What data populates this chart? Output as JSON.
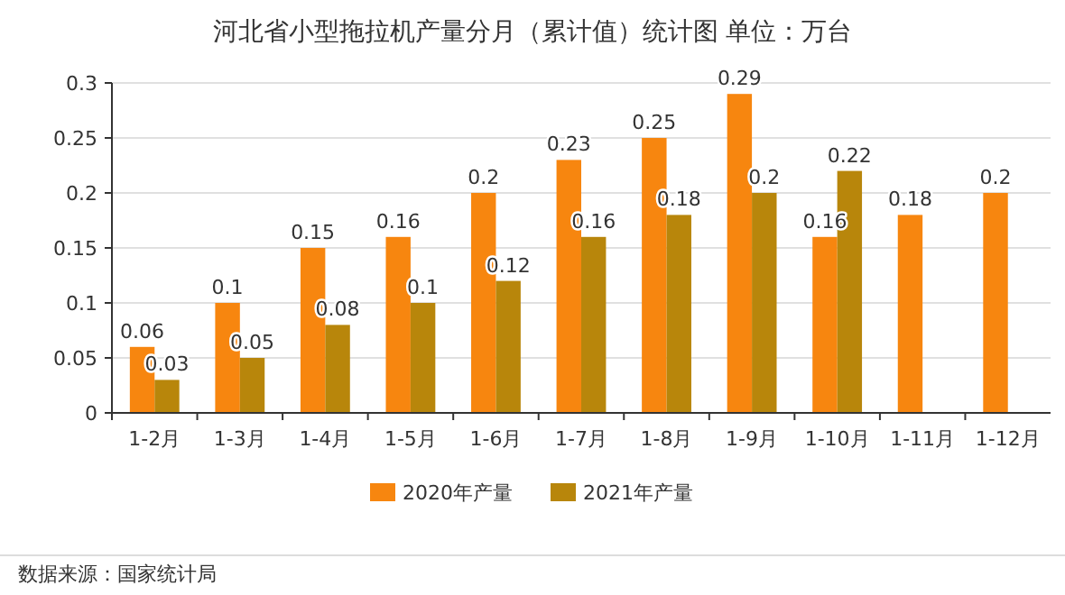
{
  "chart_data": {
    "type": "bar",
    "title": "河北省小型拖拉机产量分月（累计值）统计图 单位：万台",
    "categories": [
      "1-2月",
      "1-3月",
      "1-4月",
      "1-5月",
      "1-6月",
      "1-7月",
      "1-8月",
      "1-9月",
      "1-10月",
      "1-11月",
      "1-12月"
    ],
    "series": [
      {
        "name": "2020年产量",
        "color": "#f7860f",
        "values": [
          0.06,
          0.1,
          0.15,
          0.16,
          0.2,
          0.23,
          0.25,
          0.29,
          0.16,
          0.18,
          0.2
        ]
      },
      {
        "name": "2021年产量",
        "color": "#b8860b",
        "values": [
          0.03,
          0.05,
          0.08,
          0.1,
          0.12,
          0.16,
          0.18,
          0.2,
          0.22,
          null,
          null
        ]
      }
    ],
    "ylim": [
      0,
      0.3
    ],
    "yticks": [
      0,
      0.05,
      0.1,
      0.15,
      0.2,
      0.25,
      0.3
    ],
    "grid": "y",
    "legend": "bottom",
    "data_labels": true,
    "annotations": [
      "数据来源：国家统计局"
    ]
  }
}
